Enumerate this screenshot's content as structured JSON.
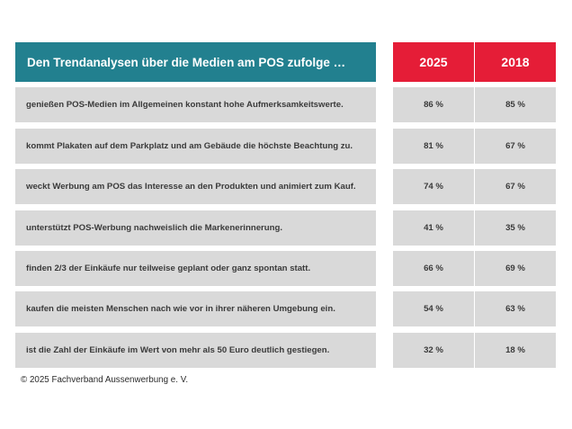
{
  "chart_data": {
    "type": "table",
    "title": "Den Trendanalysen über die Medien am POS zufolge …",
    "columns": [
      "2025",
      "2018"
    ],
    "unit": "%",
    "rows": [
      {
        "label": "genießen POS-Medien im Allgemeinen konstant hohe Aufmerksamkeitswerte.",
        "v2025": "86 %",
        "v2018": "85 %"
      },
      {
        "label": "kommt Plakaten auf dem Parkplatz und am Gebäude die höchste Beachtung zu.",
        "v2025": "81 %",
        "v2018": "67 %"
      },
      {
        "label": "weckt Werbung am POS das Interesse an den Produkten und animiert zum Kauf.",
        "v2025": "74 %",
        "v2018": "67 %"
      },
      {
        "label": "unterstützt POS-Werbung nachweislich die Markenerinnerung.",
        "v2025": "41 %",
        "v2018": "35 %"
      },
      {
        "label": "finden 2/3 der Einkäufe nur teilweise geplant oder ganz spontan statt.",
        "v2025": "66 %",
        "v2018": "69 %"
      },
      {
        "label": "kaufen die meisten Menschen nach wie vor in ihrer näheren Umgebung ein.",
        "v2025": "54 %",
        "v2018": "63 %"
      },
      {
        "label": "ist die Zahl der Einkäufe im Wert von mehr als 50 Euro deutlich gestiegen.",
        "v2025": "32 %",
        "v2018": "18 %"
      }
    ],
    "footer": "© 2025 Fachverband Aussenwerbung e. V."
  },
  "colors": {
    "header_teal": "#22808f",
    "header_red": "#e51d37",
    "row_gray": "#d9d9d9",
    "text_dark": "#3a3a3a"
  }
}
